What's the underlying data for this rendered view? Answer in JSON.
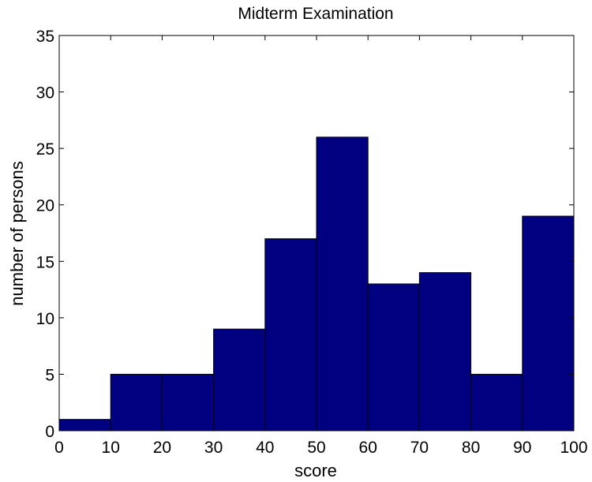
{
  "chart_data": {
    "type": "bar",
    "title": "Midterm Examination",
    "xlabel": "score",
    "ylabel": "number of persons",
    "bins": [
      {
        "start": 0,
        "end": 10,
        "value": 1
      },
      {
        "start": 10,
        "end": 20,
        "value": 5
      },
      {
        "start": 20,
        "end": 30,
        "value": 5
      },
      {
        "start": 30,
        "end": 40,
        "value": 9
      },
      {
        "start": 40,
        "end": 50,
        "value": 17
      },
      {
        "start": 50,
        "end": 60,
        "value": 26
      },
      {
        "start": 60,
        "end": 70,
        "value": 13
      },
      {
        "start": 70,
        "end": 80,
        "value": 14
      },
      {
        "start": 80,
        "end": 90,
        "value": 5
      },
      {
        "start": 90,
        "end": 100,
        "value": 19
      }
    ],
    "xlim": [
      0,
      100
    ],
    "ylim": [
      0,
      35
    ],
    "xticks": [
      0,
      10,
      20,
      30,
      40,
      50,
      60,
      70,
      80,
      90,
      100
    ],
    "yticks": [
      0,
      5,
      10,
      15,
      20,
      25,
      30,
      35
    ],
    "grid": false,
    "colors": {
      "bar_fill": "#000080",
      "bar_edge": "#000000",
      "axis": "#000000"
    }
  }
}
